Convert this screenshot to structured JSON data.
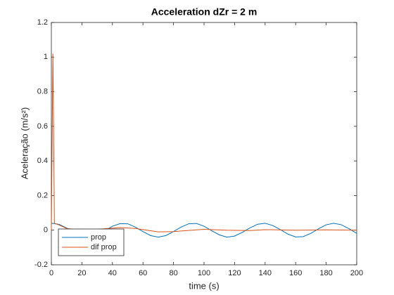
{
  "chart_data": {
    "type": "line",
    "title": "Acceleration dZr = 2 m",
    "xlabel": "time (s)",
    "ylabel": "Aceleração (m/s²)",
    "x": [
      0,
      5,
      10,
      15,
      20,
      25,
      30,
      35,
      40,
      45,
      50,
      55,
      60,
      65,
      70,
      75,
      80,
      85,
      90,
      95,
      100,
      105,
      110,
      115,
      120,
      125,
      130,
      135,
      140,
      145,
      150,
      155,
      160,
      165,
      170,
      175,
      180,
      185,
      190,
      195,
      200
    ],
    "series": [
      {
        "name": "prop",
        "color": "#0072bd",
        "values": [
          0.04,
          0.034,
          0.013,
          -0.01,
          -0.02,
          -0.02,
          -0.015,
          -0.003,
          0.023,
          0.038,
          0.037,
          0.018,
          -0.008,
          -0.031,
          -0.04,
          -0.031,
          -0.008,
          0.018,
          0.037,
          0.039,
          0.023,
          -0.003,
          -0.027,
          -0.04,
          -0.034,
          -0.013,
          0.013,
          0.034,
          0.04,
          0.027,
          0.003,
          -0.023,
          -0.039,
          -0.037,
          -0.018,
          0.008,
          0.031,
          0.04,
          0.031,
          0.008,
          -0.018
        ]
      },
      {
        "name": "dif prop",
        "color": "#d95319",
        "x": [
          0,
          1,
          2,
          5,
          10,
          20,
          30,
          45,
          55,
          70,
          80,
          100,
          115,
          130,
          140,
          160,
          180,
          200
        ],
        "values": [
          0,
          1.02,
          0.04,
          0.03,
          0.01,
          0,
          0.005,
          0.015,
          0.01,
          -0.01,
          -0.008,
          0.005,
          0,
          -0.002,
          0.003,
          0,
          0.002,
          0
        ]
      }
    ],
    "xlim": [
      0,
      200
    ],
    "xticks": [
      0,
      20,
      40,
      60,
      80,
      100,
      120,
      140,
      160,
      180,
      200
    ],
    "ylim": [
      -0.2,
      1.2
    ],
    "yticks": [
      -0.2,
      0,
      0.2,
      0.4,
      0.6,
      0.8,
      1,
      1.2
    ],
    "legend": "southwest"
  }
}
